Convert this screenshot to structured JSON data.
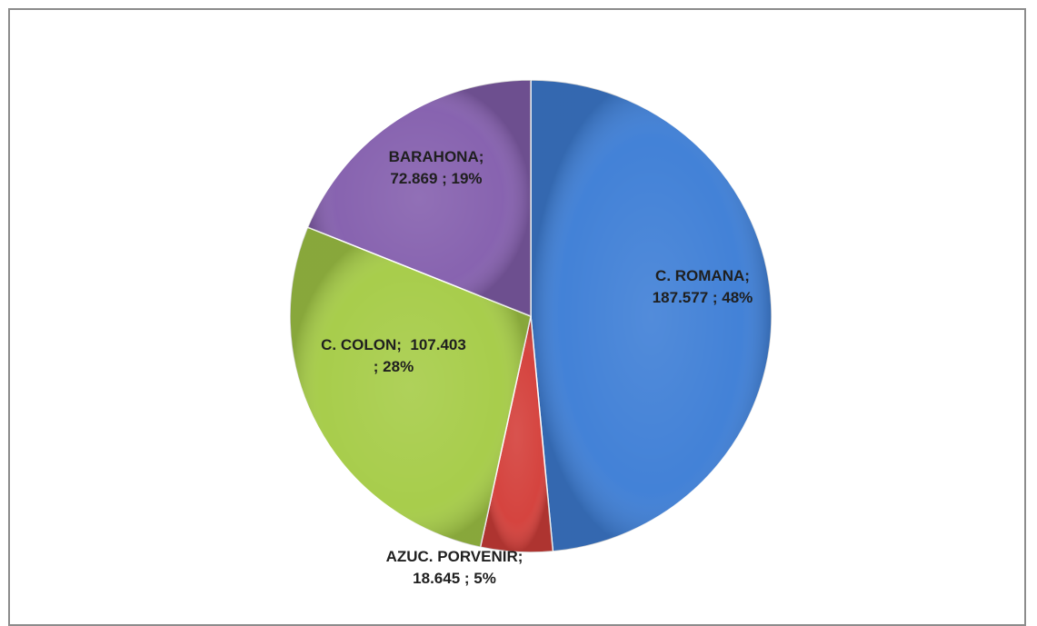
{
  "chart_data": {
    "type": "pie",
    "title": "",
    "categories": [
      "C. ROMANA",
      "AZUC. PORVENIR",
      "C. COLON",
      "BARAHONA"
    ],
    "values": [
      187.577,
      18.645,
      107.403,
      72.869
    ],
    "percent_labels": [
      "48%",
      "5%",
      "28%",
      "19%"
    ],
    "colors": [
      "#3f7fd6",
      "#d4403b",
      "#a6cc48",
      "#8560ae"
    ],
    "labels": [
      [
        "C. ROMANA;",
        "187.577 ; 48%"
      ],
      [
        "AZUC. PORVENIR;",
        "18.645 ; 5%"
      ],
      [
        "C. COLON;  107.403",
        "; 28%"
      ],
      [
        "BARAHONA;",
        "72.869 ; 19%"
      ]
    ],
    "start_angle_deg": 0,
    "direction": "clockwise",
    "legend": "none"
  }
}
